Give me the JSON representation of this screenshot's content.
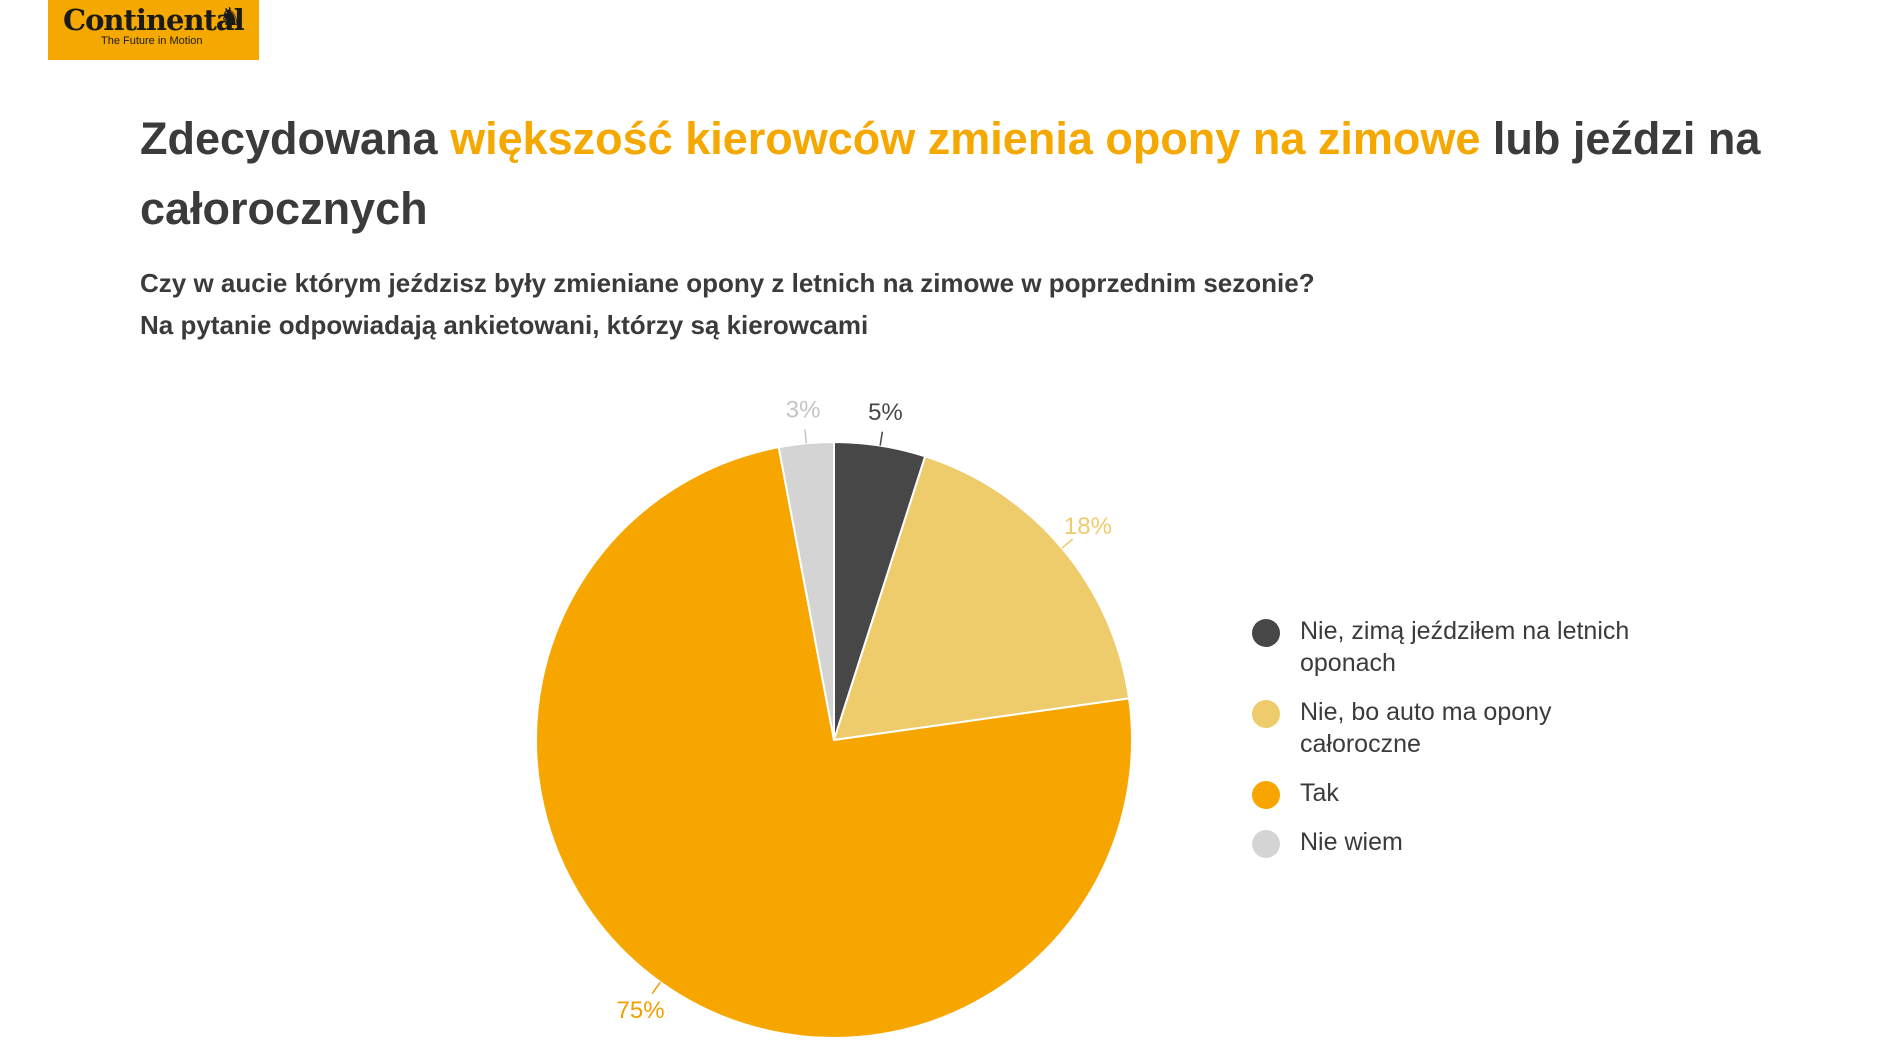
{
  "logo": {
    "name": "Continental",
    "tagline": "The Future in Motion"
  },
  "title": {
    "part1": "Zdecydowana ",
    "highlight": "większość kierowców zmienia opony na zimowe",
    "part2": " lub jeździ na całorocznych"
  },
  "subtitle": {
    "line1": "Czy w aucie którym jeździsz były zmieniane opony z letnich na zimowe w poprzednim sezonie?",
    "line2": "Na pytanie odpowiadają ankietowani, którzy są kierowcami"
  },
  "colors": {
    "accent": "#f5a800",
    "text": "#3b3b3b"
  },
  "chart_data": {
    "type": "pie",
    "legend_position": "right",
    "slices": [
      {
        "label": "Nie, zimą jeździłem na letnich oponach",
        "value": 5,
        "display": "5%",
        "color": "#474747",
        "label_color": "#474747"
      },
      {
        "label": "Nie, bo auto ma opony całoroczne",
        "value": 18,
        "display": "18%",
        "color": "#eecb6b",
        "label_color": "#eecb6b"
      },
      {
        "label": "Tak",
        "value": 75,
        "display": "75%",
        "color": "#f7a600",
        "label_color": "#f0a000"
      },
      {
        "label": "Nie wiem",
        "value": 3,
        "display": "3%",
        "color": "#d4d4d4",
        "label_color": "#c4c4c4"
      }
    ]
  }
}
